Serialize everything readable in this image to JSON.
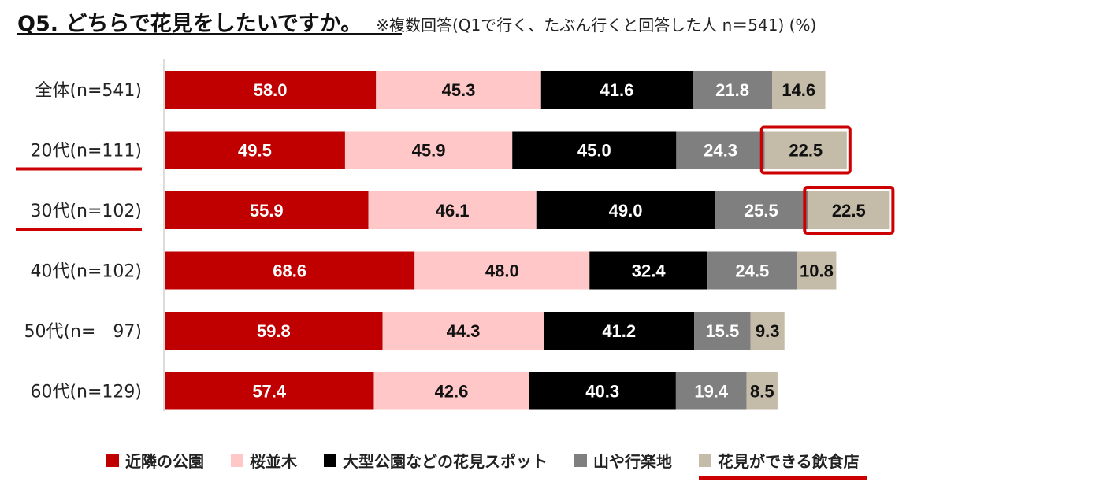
{
  "header": {
    "title": "Q5. どちらで花見をしたいですか。",
    "subtitle": "※複数回答(Q1で行く、たぶん行くと回答した人 n＝541) (%)"
  },
  "colors": {
    "park": "#c00000",
    "sakura": "#ffc7c7",
    "spot": "#000000",
    "mountain": "#7f7f7f",
    "restaurant": "#c4bba8",
    "highlight": "#cc0000"
  },
  "chart_data": {
    "type": "bar",
    "orientation": "horizontal-stacked",
    "unit": "%",
    "categories": [
      "全体(n=541)",
      "20代(n=111)",
      "30代(n=102)",
      "40代(n=102)",
      "50代(n=　97)",
      "60代(n=129)"
    ],
    "underlined_categories": [
      "20代(n=111)",
      "30代(n=102)"
    ],
    "series": [
      {
        "name": "近隣の公園",
        "color_key": "park",
        "values": [
          58.0,
          49.5,
          55.9,
          68.6,
          59.8,
          57.4
        ]
      },
      {
        "name": "桜並木",
        "color_key": "sakura",
        "values": [
          45.3,
          45.9,
          46.1,
          48.0,
          44.3,
          42.6
        ]
      },
      {
        "name": "大型公園などの花見スポット",
        "color_key": "spot",
        "values": [
          41.6,
          45.0,
          49.0,
          32.4,
          41.2,
          40.3
        ]
      },
      {
        "name": "山や行楽地",
        "color_key": "mountain",
        "values": [
          21.8,
          24.3,
          25.5,
          24.5,
          15.5,
          19.4
        ]
      },
      {
        "name": "花見ができる飲食店",
        "color_key": "restaurant",
        "values": [
          14.6,
          22.5,
          22.5,
          10.8,
          9.3,
          8.5
        ]
      }
    ],
    "highlighted_cells": [
      {
        "category_index": 1,
        "series_index": 4
      },
      {
        "category_index": 2,
        "series_index": 4
      }
    ],
    "highlighted_legend": "花見ができる飲食店",
    "legend_position": "bottom"
  }
}
